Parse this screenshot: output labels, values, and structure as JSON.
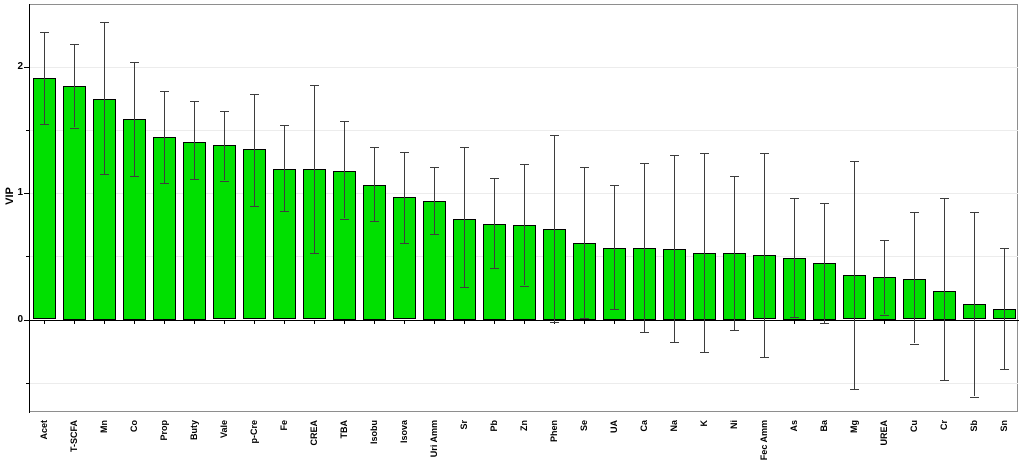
{
  "figure": {
    "background": "#ffffff",
    "frame_color": "#8e8e8e"
  },
  "chart_data": {
    "type": "bar",
    "title": "",
    "xlabel": "",
    "ylabel": "VIP",
    "legend_position": "none",
    "grid": true,
    "bar_color": "#00e000",
    "bar_border_color": "#000000",
    "error_bar_color": "#3d3d3d",
    "grid_color": "#ececec",
    "axis_color": "#000000",
    "ylim": [
      -0.74,
      2.5
    ],
    "y_major_ticks": [
      0,
      1,
      2
    ],
    "y_major_tick_labels": [
      "0",
      "1",
      "2"
    ],
    "y_minor_ticks": [
      -0.5,
      0.5,
      1.5
    ],
    "gridline_values": [
      -0.5,
      0.5,
      1.0,
      1.5,
      2.0
    ],
    "categories": [
      "Acet",
      "T-SCFA",
      "Mn",
      "Co",
      "Prop",
      "Buty",
      "Vale",
      "p-Cre",
      "Fe",
      "CREA",
      "TBA",
      "Isobu",
      "Isova",
      "Uri Amm",
      "Sr",
      "Pb",
      "Zn",
      "Phen",
      "Se",
      "UA",
      "Ca",
      "Na",
      "K",
      "Ni",
      "Fec Amm",
      "As",
      "Ba",
      "Mg",
      "UREA",
      "Cu",
      "Cr",
      "Sb",
      "Sn"
    ],
    "values": [
      1.91,
      1.85,
      1.75,
      1.59,
      1.45,
      1.41,
      1.38,
      1.35,
      1.19,
      1.19,
      1.18,
      1.07,
      0.97,
      0.94,
      0.8,
      0.76,
      0.75,
      0.72,
      0.61,
      0.57,
      0.57,
      0.56,
      0.53,
      0.53,
      0.51,
      0.49,
      0.45,
      0.35,
      0.34,
      0.32,
      0.23,
      0.12,
      0.08
    ],
    "error_low": [
      1.55,
      1.52,
      1.15,
      1.14,
      1.08,
      1.11,
      1.1,
      0.9,
      0.86,
      0.53,
      0.8,
      0.78,
      0.61,
      0.68,
      0.26,
      0.41,
      0.27,
      -0.02,
      0.01,
      0.08,
      -0.1,
      -0.18,
      -0.26,
      -0.08,
      -0.3,
      0.02,
      -0.03,
      -0.55,
      0.04,
      -0.19,
      -0.48,
      -0.61,
      -0.39
    ],
    "error_high": [
      2.28,
      2.18,
      2.36,
      2.04,
      1.81,
      1.73,
      1.65,
      1.79,
      1.54,
      1.86,
      1.57,
      1.37,
      1.33,
      1.21,
      1.37,
      1.12,
      1.23,
      1.46,
      1.21,
      1.07,
      1.24,
      1.3,
      1.32,
      1.14,
      1.32,
      0.96,
      0.92,
      1.26,
      0.63,
      0.85,
      0.96,
      0.85,
      0.57
    ]
  }
}
